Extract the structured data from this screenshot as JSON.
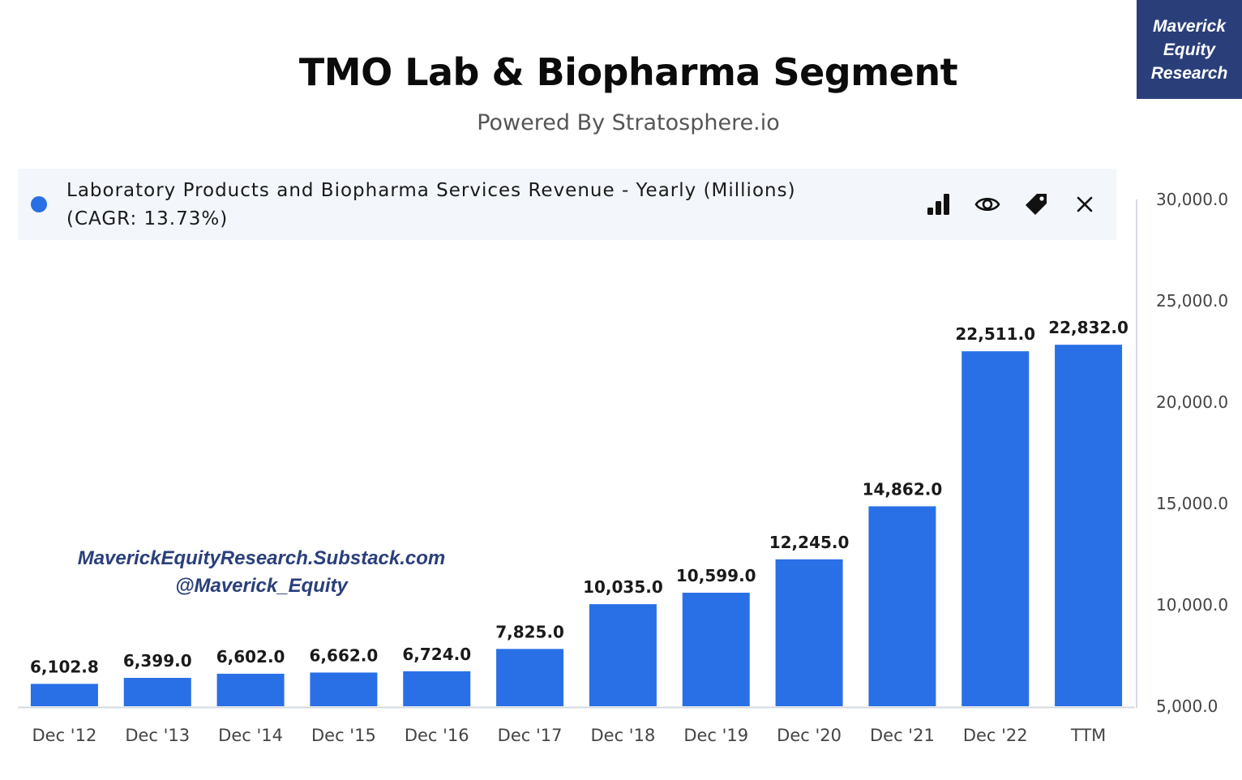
{
  "header": {
    "title": "TMO Lab & Biopharma Segment",
    "subtitle": "Powered By Stratosphere.io"
  },
  "brand_badge": {
    "lines": [
      "Maverick",
      "Equity",
      "Research"
    ],
    "color": "#2a3f7a"
  },
  "legend": {
    "line1": "Laboratory Products and Biopharma Services Revenue - Yearly (Millions)",
    "line2": "(CAGR: 13.73%)",
    "dot_color": "#2970e6",
    "actions": [
      "bar-chart-icon",
      "eye-icon",
      "tag-icon",
      "close-icon"
    ]
  },
  "watermark": {
    "line1": "MaverickEquityResearch.Substack.com",
    "line2": "@Maverick_Equity"
  },
  "chart_data": {
    "type": "bar",
    "title": "TMO Lab & Biopharma Segment",
    "subtitle": "Powered By Stratosphere.io",
    "categories": [
      "Dec '12",
      "Dec '13",
      "Dec '14",
      "Dec '15",
      "Dec '16",
      "Dec '17",
      "Dec '18",
      "Dec '19",
      "Dec '20",
      "Dec '21",
      "Dec '22",
      "TTM"
    ],
    "series": [
      {
        "name": "Laboratory Products and Biopharma Services Revenue - Yearly (Millions)",
        "values": [
          6102.8,
          6399.0,
          6602.0,
          6662.0,
          6724.0,
          7825.0,
          10035.0,
          10599.0,
          12245.0,
          14862.0,
          22511.0,
          22832.0
        ],
        "labels": [
          "6,102.8",
          "6,399.0",
          "6,602.0",
          "6,662.0",
          "6,724.0",
          "7,825.0",
          "10,035.0",
          "10,599.0",
          "12,245.0",
          "14,862.0",
          "22,511.0",
          "22,832.0"
        ],
        "color": "#2970e6"
      }
    ],
    "ylim": [
      5000,
      30000
    ],
    "yticks": [
      5000,
      10000,
      15000,
      20000,
      25000,
      30000
    ],
    "ytick_labels": [
      "5,000.0",
      "10,000.0",
      "15,000.0",
      "20,000.0",
      "25,000.0",
      "30,000.0"
    ],
    "y_axis_position": "right",
    "grid": false,
    "legend_position": "top"
  }
}
